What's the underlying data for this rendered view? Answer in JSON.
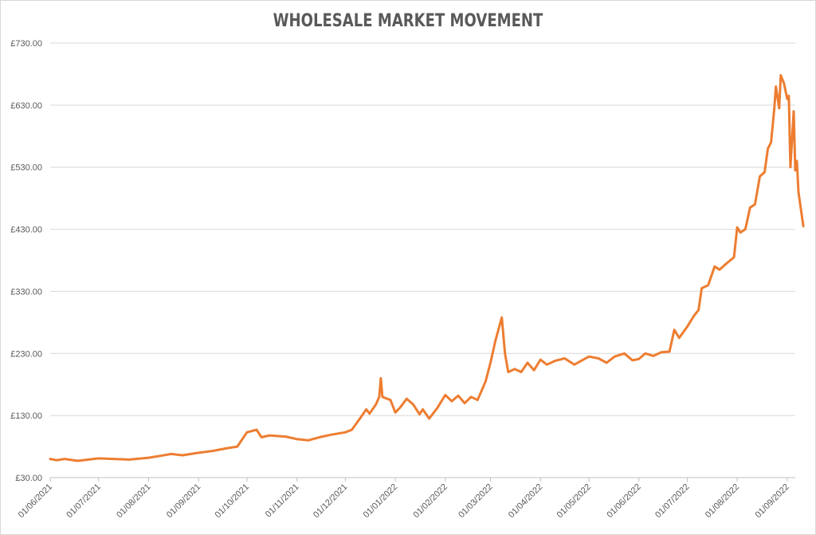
{
  "chart_data": {
    "type": "line",
    "title": "WHOLESALE MARKET MOVEMENT",
    "xlabel": "",
    "ylabel": "",
    "ylim": [
      30,
      730
    ],
    "xlim": [
      "01/06/2021",
      "06/09/2022"
    ],
    "y_ticks": [
      "£30.00",
      "£130.00",
      "£230.00",
      "£330.00",
      "£430.00",
      "£530.00",
      "£630.00",
      "£730.00"
    ],
    "x_ticks": [
      "01/06/2021",
      "01/07/2021",
      "01/08/2021",
      "01/09/2021",
      "01/10/2021",
      "01/11/2021",
      "01/12/2021",
      "01/01/2022",
      "01/02/2022",
      "01/03/2022",
      "01/04/2022",
      "01/05/2022",
      "01/06/2022",
      "01/07/2022",
      "01/08/2022",
      "01/09/2022"
    ],
    "grid": true,
    "legend": "none",
    "series": [
      {
        "color": "#ed7d31",
        "points": [
          [
            "01/06/2021",
            60
          ],
          [
            "05/06/2021",
            58
          ],
          [
            "10/06/2021",
            60
          ],
          [
            "18/06/2021",
            57
          ],
          [
            "01/07/2021",
            61
          ],
          [
            "10/07/2021",
            60
          ],
          [
            "20/07/2021",
            59
          ],
          [
            "01/08/2021",
            62
          ],
          [
            "08/08/2021",
            65
          ],
          [
            "15/08/2021",
            68
          ],
          [
            "22/08/2021",
            66
          ],
          [
            "01/09/2021",
            70
          ],
          [
            "10/09/2021",
            73
          ],
          [
            "18/09/2021",
            77
          ],
          [
            "25/09/2021",
            80
          ],
          [
            "01/10/2021",
            103
          ],
          [
            "07/10/2021",
            107
          ],
          [
            "10/10/2021",
            95
          ],
          [
            "15/10/2021",
            98
          ],
          [
            "25/10/2021",
            96
          ],
          [
            "01/11/2021",
            92
          ],
          [
            "08/11/2021",
            90
          ],
          [
            "15/11/2021",
            95
          ],
          [
            "22/11/2021",
            99
          ],
          [
            "01/12/2021",
            103
          ],
          [
            "05/12/2021",
            107
          ],
          [
            "10/12/2021",
            125
          ],
          [
            "14/12/2021",
            140
          ],
          [
            "16/12/2021",
            133
          ],
          [
            "20/12/2021",
            148
          ],
          [
            "22/12/2021",
            160
          ],
          [
            "23/12/2021",
            190
          ],
          [
            "24/12/2021",
            160
          ],
          [
            "29/12/2021",
            155
          ],
          [
            "01/01/2022",
            135
          ],
          [
            "04/01/2022",
            143
          ],
          [
            "08/01/2022",
            157
          ],
          [
            "12/01/2022",
            148
          ],
          [
            "16/01/2022",
            132
          ],
          [
            "18/01/2022",
            140
          ],
          [
            "22/01/2022",
            125
          ],
          [
            "27/01/2022",
            142
          ],
          [
            "01/02/2022",
            163
          ],
          [
            "05/02/2022",
            153
          ],
          [
            "09/02/2022",
            162
          ],
          [
            "13/02/2022",
            150
          ],
          [
            "17/02/2022",
            160
          ],
          [
            "21/02/2022",
            155
          ],
          [
            "26/02/2022",
            185
          ],
          [
            "01/03/2022",
            215
          ],
          [
            "04/03/2022",
            250
          ],
          [
            "08/03/2022",
            288
          ],
          [
            "10/03/2022",
            230
          ],
          [
            "12/03/2022",
            200
          ],
          [
            "16/03/2022",
            205
          ],
          [
            "20/03/2022",
            200
          ],
          [
            "24/03/2022",
            215
          ],
          [
            "28/03/2022",
            203
          ],
          [
            "01/04/2022",
            220
          ],
          [
            "05/04/2022",
            212
          ],
          [
            "10/04/2022",
            218
          ],
          [
            "16/04/2022",
            222
          ],
          [
            "22/04/2022",
            212
          ],
          [
            "01/05/2022",
            225
          ],
          [
            "07/05/2022",
            222
          ],
          [
            "12/05/2022",
            215
          ],
          [
            "17/05/2022",
            225
          ],
          [
            "23/05/2022",
            230
          ],
          [
            "28/05/2022",
            219
          ],
          [
            "01/06/2022",
            221
          ],
          [
            "05/06/2022",
            230
          ],
          [
            "10/06/2022",
            226
          ],
          [
            "15/06/2022",
            232
          ],
          [
            "20/06/2022",
            233
          ],
          [
            "23/06/2022",
            268
          ],
          [
            "26/06/2022",
            255
          ],
          [
            "01/07/2022",
            273
          ],
          [
            "05/07/2022",
            290
          ],
          [
            "08/07/2022",
            300
          ],
          [
            "10/07/2022",
            335
          ],
          [
            "14/07/2022",
            340
          ],
          [
            "18/07/2022",
            370
          ],
          [
            "21/07/2022",
            365
          ],
          [
            "24/07/2022",
            372
          ],
          [
            "30/07/2022",
            385
          ],
          [
            "01/08/2022",
            433
          ],
          [
            "03/08/2022",
            425
          ],
          [
            "06/08/2022",
            430
          ],
          [
            "09/08/2022",
            465
          ],
          [
            "12/08/2022",
            470
          ],
          [
            "15/08/2022",
            515
          ],
          [
            "18/08/2022",
            522
          ],
          [
            "20/08/2022",
            560
          ],
          [
            "22/08/2022",
            570
          ],
          [
            "24/08/2022",
            625
          ],
          [
            "25/08/2022",
            660
          ],
          [
            "27/08/2022",
            625
          ],
          [
            "28/08/2022",
            678
          ],
          [
            "30/08/2022",
            665
          ],
          [
            "01/09/2022",
            640
          ],
          [
            "02/09/2022",
            645
          ],
          [
            "03/09/2022",
            530
          ],
          [
            "05/09/2022",
            620
          ],
          [
            "06/09/2022",
            525
          ],
          [
            "07/09/2022",
            540
          ],
          [
            "08/09/2022",
            490
          ],
          [
            "11/09/2022",
            435
          ]
        ]
      }
    ]
  }
}
